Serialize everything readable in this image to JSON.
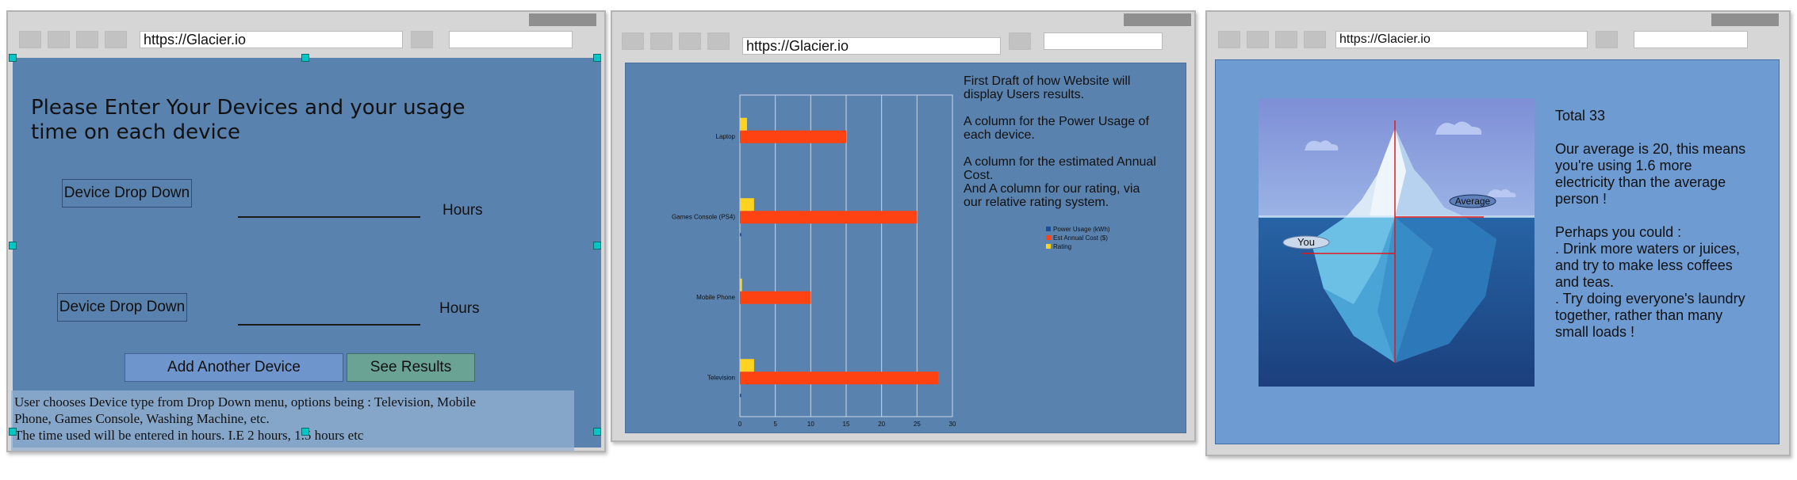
{
  "browser": {
    "url": "https://Glacier.io"
  },
  "panel1": {
    "heading_line1": "Please Enter Your Devices and your usage",
    "heading_line2": "time on each device",
    "device_rows": [
      {
        "dropdown_label": "Device Drop Down",
        "unit": "Hours"
      },
      {
        "dropdown_label": "Device Drop Down",
        "unit": "Hours"
      }
    ],
    "add_button": "Add Another Device",
    "results_button": "See Results",
    "note_lines": [
      "User chooses Device type from Drop Down menu, options being : Television, Mobile",
      "Phone, Games Console, Washing Machine, etc.",
      "The time used will be entered in hours. I.E 2 hours, 1.5 hours etc"
    ]
  },
  "panel2": {
    "notes": [
      "First Draft of how Website will",
      "display Users results.",
      "",
      "A column for the Power Usage of",
      "each device.",
      "",
      "A column for the estimated Annual",
      "Cost.",
      "And A column for our rating, via",
      "our relative rating system."
    ]
  },
  "chart_data": {
    "type": "bar",
    "orientation": "horizontal",
    "categories": [
      "Laptop",
      "Games Console (PS4)",
      "Mobile Phone",
      "Television"
    ],
    "series": [
      {
        "name": "Power Usage (kWh)",
        "color": "#1f4e99",
        "values": [
          0,
          0.2,
          0,
          0.2
        ]
      },
      {
        "name": "Est Annual Cost ($)",
        "color": "#ff4211",
        "values": [
          15,
          25,
          10,
          28
        ]
      },
      {
        "name": "Rating",
        "color": "#ffd320",
        "values": [
          1,
          2,
          0.3,
          2
        ]
      }
    ],
    "xlim": [
      0,
      30
    ],
    "xticks": [
      "0",
      "5",
      "10",
      "15",
      "20",
      "25",
      "30"
    ],
    "grid": true,
    "legend_position": "right"
  },
  "panel3": {
    "you_label": "You",
    "average_label": "Average",
    "text_lines": [
      "Total 33",
      "",
      "Our average is 20, this means",
      "you're using 1.6 more",
      "electricity than the average",
      "person !",
      "",
      "Perhaps you could :",
      ". Drink more waters or juices,",
      "and try to make less coffees",
      "and teas.",
      ". Try doing everyone's laundry",
      "together, rather than many",
      "small loads !"
    ]
  },
  "colors": {
    "panel_blue": "#5a82ae",
    "panel3_blue": "#6e9bd2",
    "add_button": "#6f96cc",
    "results_button": "#6aa294",
    "selection_handle": "#00c6c6"
  }
}
